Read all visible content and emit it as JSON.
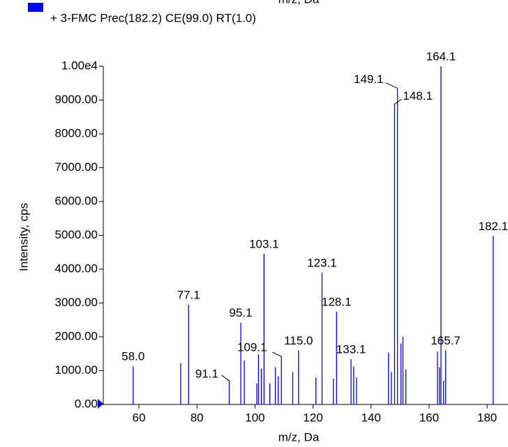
{
  "previous_x_label": "m/z, Da",
  "chart_data": {
    "type": "stem",
    "title": "+ 3-FMC Prec(182.2) CE(99.0) RT(1.0)",
    "x_label": "m/z, Da",
    "y_label": "Intensity, cps",
    "series": [
      {
        "name": "+ 3-FMC Prec(182.2) CE(99.0) RT(1.0)",
        "color": "#0000ff",
        "x": [
          58.0,
          74.4,
          77.1,
          91.1,
          95.1,
          96.3,
          100.6,
          101.2,
          102.2,
          103.1,
          105.1,
          107.0,
          108.0,
          109.1,
          113.0,
          115.0,
          121.0,
          123.1,
          127.0,
          128.1,
          133.1,
          134.0,
          135.0,
          146.0,
          147.0,
          148.1,
          149.1,
          150.3,
          151.0,
          152.0,
          162.9,
          163.6,
          164.1,
          165.0,
          165.7,
          182.1
        ],
        "values": [
          1130,
          1220,
          2950,
          700,
          2420,
          1300,
          620,
          1480,
          1060,
          4450,
          620,
          1100,
          840,
          1420,
          960,
          1600,
          800,
          3900,
          760,
          2740,
          1340,
          1120,
          800,
          1530,
          960,
          8880,
          9350,
          1800,
          2000,
          1040,
          1560,
          1100,
          10000,
          700,
          1600,
          4980
        ],
        "x_labels": [
          "58.0",
          null,
          "77.1",
          "91.1",
          "95.1",
          null,
          null,
          null,
          null,
          "103.1",
          null,
          null,
          null,
          "109.1",
          null,
          "115.0",
          null,
          "123.1",
          null,
          "128.1",
          "133.1",
          null,
          null,
          null,
          null,
          "148.1",
          "149.1",
          null,
          null,
          null,
          null,
          null,
          "164.1",
          null,
          "165.7",
          "182.1"
        ]
      }
    ],
    "xlim": [
      47.7,
      187.2
    ],
    "ylim": [
      0,
      10000
    ],
    "xticks": [
      60,
      80,
      100,
      120,
      140,
      160,
      180
    ],
    "yticks": [
      {
        "value": 0,
        "label": "0.00"
      },
      {
        "value": 1000,
        "label": "1000.00"
      },
      {
        "value": 2000,
        "label": "2000.00"
      },
      {
        "value": 3000,
        "label": "3000.00"
      },
      {
        "value": 4000,
        "label": "4000.00"
      },
      {
        "value": 5000,
        "label": "5000.00"
      },
      {
        "value": 6000,
        "label": "6000.00"
      },
      {
        "value": 7000,
        "label": "7000.00"
      },
      {
        "value": 8000,
        "label": "8000.00"
      },
      {
        "value": 9000,
        "label": "9000.00"
      },
      {
        "value": 10000,
        "label": "1.00e4"
      }
    ],
    "grid": false
  }
}
